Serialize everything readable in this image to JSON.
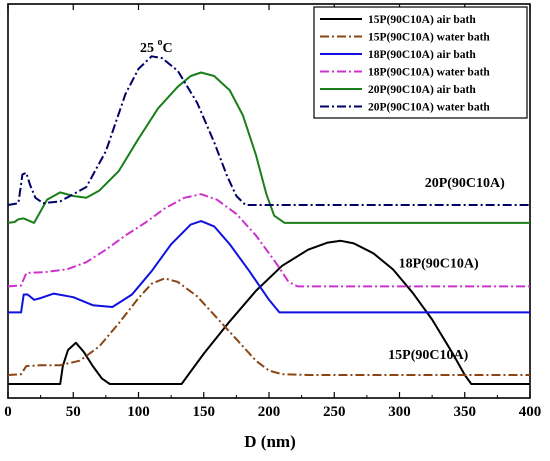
{
  "chart_data": {
    "type": "line",
    "title": "",
    "temperature_label": "25 °C",
    "xlabel": "D (nm)",
    "ylabel": "",
    "xlim": [
      0,
      400
    ],
    "ylim": [
      0,
      21
    ],
    "x_ticks": [
      0,
      50,
      100,
      150,
      200,
      250,
      300,
      350,
      400
    ],
    "y_ticks_shown": false,
    "legend_position": "top-right",
    "annotations": [
      {
        "text": "20P(90C10A)",
        "x": 350,
        "y": 11.0
      },
      {
        "text": "18P(90C10A)",
        "x": 330,
        "y": 6.5
      },
      {
        "text": "15P(90C10A)",
        "x": 322,
        "y": 1.4
      }
    ],
    "series": [
      {
        "name": "15P(90C10A) air bath",
        "color": "#000000",
        "dash": "solid",
        "points": [
          [
            0,
            0
          ],
          [
            40,
            0
          ],
          [
            42,
            1.0
          ],
          [
            46,
            1.9
          ],
          [
            52,
            2.3
          ],
          [
            58,
            1.8
          ],
          [
            65,
            1.0
          ],
          [
            72,
            0.3
          ],
          [
            78,
            0
          ],
          [
            133,
            0
          ],
          [
            140,
            0.7
          ],
          [
            150,
            1.7
          ],
          [
            170,
            3.5
          ],
          [
            190,
            5.2
          ],
          [
            210,
            6.6
          ],
          [
            230,
            7.5
          ],
          [
            245,
            7.9
          ],
          [
            255,
            8.0
          ],
          [
            265,
            7.85
          ],
          [
            280,
            7.3
          ],
          [
            295,
            6.4
          ],
          [
            310,
            5.1
          ],
          [
            325,
            3.6
          ],
          [
            340,
            1.8
          ],
          [
            350,
            0.5
          ],
          [
            355,
            0
          ],
          [
            400,
            0
          ]
        ]
      },
      {
        "name": "15P(90C10A) water bath",
        "color": "#8b4513",
        "dash": "dashdot",
        "points": [
          [
            0,
            0.5
          ],
          [
            10,
            0.55
          ],
          [
            14,
            1.0
          ],
          [
            25,
            1.05
          ],
          [
            40,
            1.05
          ],
          [
            55,
            1.3
          ],
          [
            70,
            2.1
          ],
          [
            85,
            3.4
          ],
          [
            100,
            4.8
          ],
          [
            110,
            5.6
          ],
          [
            120,
            5.9
          ],
          [
            130,
            5.7
          ],
          [
            145,
            4.9
          ],
          [
            160,
            3.7
          ],
          [
            175,
            2.5
          ],
          [
            190,
            1.3
          ],
          [
            200,
            0.75
          ],
          [
            210,
            0.55
          ],
          [
            230,
            0.5
          ],
          [
            400,
            0.5
          ]
        ]
      },
      {
        "name": "18P(90C10A) air bath",
        "color": "#1010e0",
        "dash": "solid",
        "points": [
          [
            0,
            4.0
          ],
          [
            10,
            4.0
          ],
          [
            12,
            5.0
          ],
          [
            15,
            5.0
          ],
          [
            20,
            4.7
          ],
          [
            25,
            4.8
          ],
          [
            35,
            5.05
          ],
          [
            50,
            4.85
          ],
          [
            65,
            4.4
          ],
          [
            80,
            4.3
          ],
          [
            95,
            5.0
          ],
          [
            110,
            6.3
          ],
          [
            125,
            7.8
          ],
          [
            140,
            8.9
          ],
          [
            148,
            9.1
          ],
          [
            158,
            8.8
          ],
          [
            170,
            7.8
          ],
          [
            185,
            6.3
          ],
          [
            200,
            4.7
          ],
          [
            208,
            4.0
          ],
          [
            400,
            4.0
          ]
        ]
      },
      {
        "name": "18P(90C10A) water bath",
        "color": "#cc33cc",
        "dash": "dashdot",
        "points": [
          [
            0,
            5.45
          ],
          [
            10,
            5.5
          ],
          [
            14,
            6.2
          ],
          [
            28,
            6.25
          ],
          [
            45,
            6.4
          ],
          [
            60,
            6.8
          ],
          [
            75,
            7.5
          ],
          [
            90,
            8.3
          ],
          [
            105,
            9.0
          ],
          [
            120,
            9.8
          ],
          [
            135,
            10.4
          ],
          [
            148,
            10.6
          ],
          [
            160,
            10.3
          ],
          [
            175,
            9.5
          ],
          [
            190,
            8.3
          ],
          [
            205,
            6.8
          ],
          [
            215,
            5.7
          ],
          [
            222,
            5.45
          ],
          [
            400,
            5.45
          ]
        ]
      },
      {
        "name": "20P(90C10A) air bath",
        "color": "#1a7f1a",
        "dash": "solid",
        "points": [
          [
            0,
            9.0
          ],
          [
            5,
            9.05
          ],
          [
            8,
            9.2
          ],
          [
            12,
            9.25
          ],
          [
            20,
            9.0
          ],
          [
            30,
            10.3
          ],
          [
            40,
            10.7
          ],
          [
            50,
            10.5
          ],
          [
            60,
            10.4
          ],
          [
            70,
            10.8
          ],
          [
            85,
            11.9
          ],
          [
            100,
            13.7
          ],
          [
            115,
            15.4
          ],
          [
            130,
            16.6
          ],
          [
            140,
            17.2
          ],
          [
            148,
            17.4
          ],
          [
            158,
            17.2
          ],
          [
            170,
            16.4
          ],
          [
            180,
            15.0
          ],
          [
            190,
            12.8
          ],
          [
            198,
            10.6
          ],
          [
            204,
            9.4
          ],
          [
            212,
            9.0
          ],
          [
            400,
            9.0
          ]
        ]
      },
      {
        "name": "20P(90C10A) water bath",
        "color": "#000066",
        "dash": "dashdot",
        "points": [
          [
            0,
            10.0
          ],
          [
            8,
            10.1
          ],
          [
            11,
            11.7
          ],
          [
            14,
            11.8
          ],
          [
            17,
            11.1
          ],
          [
            21,
            10.4
          ],
          [
            27,
            10.1
          ],
          [
            40,
            10.2
          ],
          [
            60,
            11.0
          ],
          [
            75,
            13.0
          ],
          [
            90,
            16.2
          ],
          [
            100,
            17.6
          ],
          [
            110,
            18.3
          ],
          [
            118,
            18.2
          ],
          [
            130,
            17.5
          ],
          [
            145,
            15.7
          ],
          [
            158,
            13.5
          ],
          [
            168,
            11.6
          ],
          [
            175,
            10.5
          ],
          [
            182,
            10.0
          ],
          [
            400,
            10.0
          ]
        ]
      }
    ]
  }
}
